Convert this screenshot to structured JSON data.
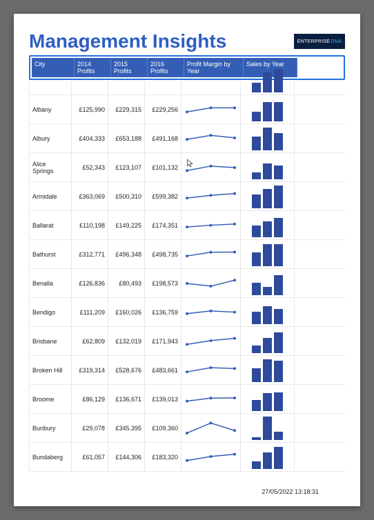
{
  "title": "Management Insights",
  "logo_text": "ENTERPRISE",
  "logo_accent": "DNA",
  "colors": {
    "title": "#2e5fc1",
    "header_bg": "#345eb5",
    "header_border": "#1f6fe0",
    "spark_line": "#345eb5",
    "bar_fill": "#2e4a9b",
    "grid": "#e8e8e8",
    "text": "#222222"
  },
  "columns": [
    {
      "key": "city",
      "label": "City",
      "w": 62
    },
    {
      "key": "p2014",
      "label": "2014 Profits",
      "w": 53
    },
    {
      "key": "p2015",
      "label": "2015 Profits",
      "w": 53
    },
    {
      "key": "p2016",
      "label": "2016 Profits",
      "w": 53
    },
    {
      "key": "margin",
      "label": "Profit Margin by Year",
      "w": 86
    },
    {
      "key": "sales",
      "label": "Sales by Year",
      "w": 78
    }
  ],
  "rows": [
    {
      "city": "Albany",
      "p2014": "£125,990",
      "p2015": "£229,315",
      "p2016": "£229,256",
      "spark": [
        0.35,
        0.62,
        0.62
      ],
      "bars": [
        0.4,
        0.78,
        0.78
      ]
    },
    {
      "city": "Albury",
      "p2014": "£404,333",
      "p2015": "£653,188",
      "p2016": "£491,168",
      "spark": [
        0.45,
        0.72,
        0.55
      ],
      "bars": [
        0.55,
        0.92,
        0.7
      ]
    },
    {
      "city": "Alice Springs",
      "p2014": "£52,343",
      "p2015": "£123,107",
      "p2016": "£101,132",
      "spark": [
        0.3,
        0.6,
        0.5
      ],
      "bars": [
        0.28,
        0.65,
        0.55
      ]
    },
    {
      "city": "Armidale",
      "p2014": "£363,069",
      "p2015": "£500,310",
      "p2016": "£599,382",
      "spark": [
        0.4,
        0.58,
        0.7
      ],
      "bars": [
        0.55,
        0.78,
        0.92
      ]
    },
    {
      "city": "Ballarat",
      "p2014": "£110,198",
      "p2015": "£149,225",
      "p2016": "£174,351",
      "spark": [
        0.4,
        0.52,
        0.6
      ],
      "bars": [
        0.48,
        0.65,
        0.78
      ]
    },
    {
      "city": "Bathurst",
      "p2014": "£312,771",
      "p2015": "£496,348",
      "p2016": "£498,735",
      "spark": [
        0.4,
        0.65,
        0.66
      ],
      "bars": [
        0.55,
        0.88,
        0.88
      ]
    },
    {
      "city": "Benalla",
      "p2014": "£126,836",
      "p2015": "£80,493",
      "p2016": "£198,573",
      "spark": [
        0.5,
        0.32,
        0.72
      ],
      "bars": [
        0.5,
        0.32,
        0.8
      ]
    },
    {
      "city": "Bendigo",
      "p2014": "£111,209",
      "p2015": "£160,026",
      "p2016": "£136,759",
      "spark": [
        0.42,
        0.6,
        0.52
      ],
      "bars": [
        0.5,
        0.72,
        0.62
      ]
    },
    {
      "city": "Brisbane",
      "p2014": "£62,809",
      "p2015": "£132,019",
      "p2016": "£171,943",
      "spark": [
        0.3,
        0.55,
        0.7
      ],
      "bars": [
        0.3,
        0.62,
        0.82
      ]
    },
    {
      "city": "Broken Hill",
      "p2014": "£319,314",
      "p2015": "£528,676",
      "p2016": "£483,661",
      "spark": [
        0.4,
        0.68,
        0.62
      ],
      "bars": [
        0.55,
        0.92,
        0.85
      ]
    },
    {
      "city": "Broome",
      "p2014": "£86,129",
      "p2015": "£136,671",
      "p2016": "£139,013",
      "spark": [
        0.38,
        0.58,
        0.59
      ],
      "bars": [
        0.45,
        0.72,
        0.74
      ]
    },
    {
      "city": "Bunbury",
      "p2014": "£29,078",
      "p2015": "£345,395",
      "p2016": "£109,360",
      "spark": [
        0.18,
        0.85,
        0.35
      ],
      "bars": [
        0.12,
        0.95,
        0.32
      ]
    },
    {
      "city": "Bundaberg",
      "p2014": "£61,057",
      "p2015": "£144,306",
      "p2016": "£183,320",
      "spark": [
        0.28,
        0.55,
        0.7
      ],
      "bars": [
        0.3,
        0.68,
        0.88
      ]
    }
  ],
  "cursor_row": 2,
  "timestamp": "27/05/2022 13:18:31"
}
